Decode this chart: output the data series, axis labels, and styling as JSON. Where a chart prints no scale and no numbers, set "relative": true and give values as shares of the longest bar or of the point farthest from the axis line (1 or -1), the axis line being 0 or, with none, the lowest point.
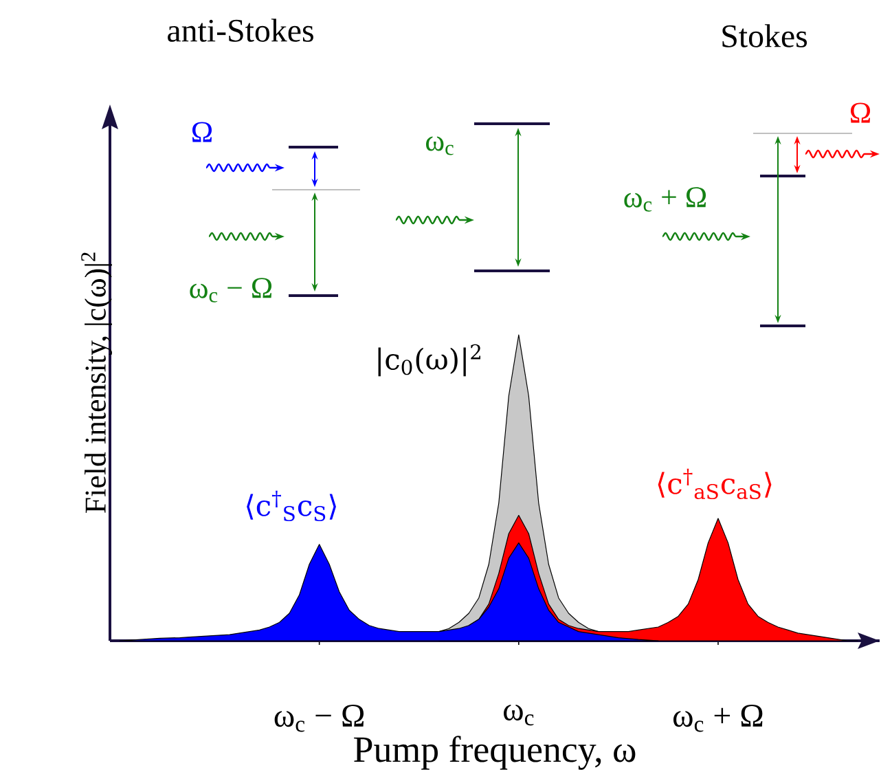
{
  "chart_data": {
    "type": "area",
    "relative": true,
    "xlabel": "Pump frequency, ω",
    "ylabel": "Field intensity, |c(ω)|$^{2}$",
    "tick_labels": "x",
    "categories": [
      null,
      null,
      null,
      null,
      null,
      null,
      null,
      null,
      null,
      null,
      null,
      null,
      null,
      null,
      null,
      null,
      null,
      null,
      null,
      null,
      "ω$_{c}$ − Ω",
      null,
      null,
      null,
      null,
      null,
      null,
      null,
      null,
      null,
      null,
      null,
      null,
      null,
      null,
      null,
      null,
      null,
      null,
      null,
      "ω$_{c}$",
      null,
      null,
      null,
      null,
      null,
      null,
      null,
      null,
      null,
      null,
      null,
      null,
      null,
      null,
      null,
      null,
      null,
      null,
      null,
      "ω$_{c}$ + Ω",
      null,
      null,
      null,
      null,
      null,
      null,
      null,
      null,
      null,
      null,
      null,
      null,
      null,
      null,
      null,
      null
    ],
    "series": [
      {
        "name": "|c$_{0}$(ω)|$^{2}$",
        "color": "#c8c8c8",
        "values": [
          null,
          null,
          null,
          null,
          null,
          null,
          null,
          null,
          null,
          null,
          null,
          null,
          null,
          null,
          null,
          null,
          null,
          null,
          null,
          null,
          null,
          null,
          null,
          null,
          null,
          null,
          null,
          null,
          null,
          null,
          null,
          null,
          0.03,
          0.04,
          0.06,
          0.09,
          0.14,
          0.25,
          0.45,
          0.8,
          1.0,
          0.8,
          0.45,
          0.25,
          0.14,
          0.09,
          0.06,
          0.04,
          0.03,
          null,
          null,
          null,
          null,
          null,
          null,
          null,
          null,
          null,
          null,
          null,
          null,
          null,
          null,
          null,
          null,
          null,
          null,
          null,
          null,
          null,
          null,
          null,
          null,
          null,
          null,
          null,
          null
        ]
      },
      {
        "name": "⟨c$^{†}$$_{aS}$c$_{aS}$⟩",
        "color": "#ff0000",
        "values": [
          null,
          null,
          null,
          null,
          null,
          null,
          null,
          null,
          null,
          null,
          null,
          null,
          null,
          null,
          null,
          null,
          null,
          null,
          null,
          null,
          null,
          null,
          null,
          null,
          null,
          null,
          null,
          null,
          null,
          null,
          null,
          null,
          null,
          null,
          null,
          0.05,
          0.07,
          0.12,
          0.22,
          0.35,
          0.41,
          0.35,
          0.22,
          0.12,
          0.07,
          0.05,
          0.04,
          0.035,
          0.03,
          0.03,
          0.03,
          0.03,
          0.035,
          0.04,
          0.045,
          0.06,
          0.08,
          0.12,
          0.2,
          0.32,
          0.4,
          0.32,
          0.2,
          0.12,
          0.08,
          0.06,
          0.045,
          0.035,
          0.025,
          0.02,
          0.015,
          0.01,
          0.005,
          0.0,
          0.0,
          null,
          null
        ]
      },
      {
        "name": "⟨c$^{†}$$_{S}$c$_{S}$⟩",
        "color": "#0000ff",
        "values": [
          0.0,
          0.002,
          0.004,
          0.006,
          0.008,
          0.009,
          0.01,
          0.012,
          0.014,
          0.016,
          0.018,
          0.02,
          0.025,
          0.03,
          0.035,
          0.045,
          0.06,
          0.09,
          0.15,
          0.25,
          0.315,
          0.25,
          0.16,
          0.1,
          0.07,
          0.05,
          0.04,
          0.035,
          0.03,
          0.03,
          0.03,
          0.03,
          0.03,
          0.035,
          0.04,
          0.05,
          0.07,
          0.11,
          0.17,
          0.27,
          0.32,
          0.27,
          0.17,
          0.1,
          0.06,
          0.045,
          0.03,
          0.025,
          0.02,
          0.015,
          0.01,
          0.007,
          0.004,
          0.002,
          0.0,
          null,
          null,
          null,
          null,
          null,
          null,
          null,
          null,
          null,
          null,
          null,
          null,
          null,
          null,
          null,
          null,
          null,
          null,
          null,
          null,
          null,
          null
        ]
      }
    ],
    "annotations": [
      "anti-Stokes",
      "Stokes",
      "Ω",
      "ω$_{c}$ − Ω",
      "ω$_{c}$",
      "ω$_{c}$ + Ω",
      "Ω"
    ]
  }
}
